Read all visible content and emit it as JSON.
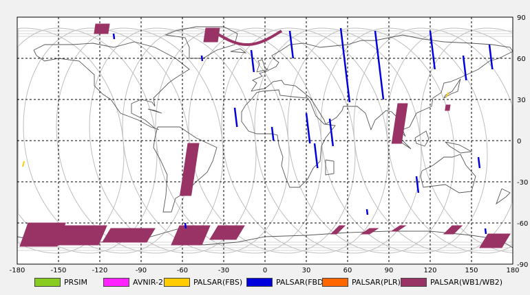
{
  "chart_data": {
    "type": "map",
    "title": "",
    "xlim": [
      -180,
      180
    ],
    "ylim": [
      -90,
      90
    ],
    "xticks": [
      -180,
      -150,
      -120,
      -90,
      -60,
      -30,
      0,
      30,
      60,
      90,
      120,
      150,
      180
    ],
    "yticks": [
      90,
      60,
      30,
      0,
      -30,
      -60,
      -90
    ],
    "xtick_labels": [
      "-180",
      "-150",
      "-120",
      "-90",
      "-60",
      "-30",
      "0",
      "30",
      "60",
      "90",
      "120",
      "150",
      "180"
    ],
    "ytick_labels": [
      "90",
      "60",
      "30",
      "0",
      "-30",
      "-60",
      "-90"
    ],
    "grid": true,
    "legend": [
      {
        "name": "PRSIM",
        "color": "#88cc22"
      },
      {
        "name": "AVNIR-2",
        "color": "#ff22ff"
      },
      {
        "name": "PALSAR(FBS)",
        "color": "#ffcc00"
      },
      {
        "name": "PALSAR(FBD)",
        "color": "#0000dd"
      },
      {
        "name": "PALSAR(PLR)",
        "color": "#ff6600"
      },
      {
        "name": "PALSAR(WB1/WB2)",
        "color": "#993366"
      }
    ],
    "orbit_lon_offsets": [
      -175,
      -151,
      -127,
      -103,
      -79,
      -55,
      -31,
      -7,
      17,
      41,
      65,
      89,
      113,
      137,
      161
    ],
    "fbd_tracks": [
      {
        "lon": -110,
        "lat": [
          78,
          74
        ]
      },
      {
        "lon": -46,
        "lat": [
          62,
          58
        ]
      },
      {
        "lon": -10,
        "lat": [
          66,
          50
        ]
      },
      {
        "lon": 18,
        "lat": [
          80,
          60
        ]
      },
      {
        "lon": 55,
        "lat": [
          82,
          28
        ]
      },
      {
        "lon": 80,
        "lat": [
          80,
          30
        ]
      },
      {
        "lon": 120,
        "lat": [
          80,
          52
        ]
      },
      {
        "lon": 163,
        "lat": [
          70,
          52
        ]
      },
      {
        "lon": 144,
        "lat": [
          62,
          44
        ]
      },
      {
        "lon": -22,
        "lat": [
          24,
          10
        ]
      },
      {
        "lon": 30,
        "lat": [
          20,
          -2
        ]
      },
      {
        "lon": 36,
        "lat": [
          -2,
          -20
        ]
      },
      {
        "lon": 47,
        "lat": [
          16,
          -4
        ]
      },
      {
        "lon": 5,
        "lat": [
          10,
          0
        ]
      },
      {
        "lon": 110,
        "lat": [
          -26,
          -38
        ]
      },
      {
        "lon": 155,
        "lat": [
          -12,
          -20
        ]
      },
      {
        "lon": 74,
        "lat": [
          -50,
          -54
        ]
      },
      {
        "lon": -58,
        "lat": [
          -60,
          -64
        ]
      },
      {
        "lon": 160,
        "lat": [
          -64,
          -68
        ]
      }
    ],
    "wb_strips": [
      {
        "lon": -52,
        "lat": [
          -2,
          -40
        ],
        "w": 8
      },
      {
        "lon": 100,
        "lat": [
          27,
          -2
        ],
        "w": 7
      },
      {
        "lon": -118,
        "lat": [
          85,
          78
        ],
        "w": 10
      },
      {
        "lon": -38,
        "lat": [
          82,
          72
        ],
        "w": 10
      },
      {
        "lon": 133,
        "lat": [
          26,
          22
        ],
        "w": 3
      }
    ],
    "wb_antarctic": [
      {
        "lon": [
          -178,
          -145
        ],
        "lat": [
          -60,
          -77
        ]
      },
      {
        "lon": [
          -152,
          -115
        ],
        "lat": [
          -62,
          -76
        ]
      },
      {
        "lon": [
          -118,
          -80
        ],
        "lat": [
          -64,
          -74
        ]
      },
      {
        "lon": [
          -68,
          -40
        ],
        "lat": [
          -62,
          -76
        ]
      },
      {
        "lon": [
          -40,
          -15
        ],
        "lat": [
          -62,
          -72
        ]
      },
      {
        "lon": [
          48,
          58
        ],
        "lat": [
          -62,
          -68
        ]
      },
      {
        "lon": [
          70,
          82
        ],
        "lat": [
          -64,
          -68
        ]
      },
      {
        "lon": [
          92,
          102
        ],
        "lat": [
          -62,
          -66
        ]
      },
      {
        "lon": [
          130,
          143
        ],
        "lat": [
          -62,
          -68
        ]
      },
      {
        "lon": [
          156,
          178
        ],
        "lat": [
          -68,
          -78
        ]
      }
    ],
    "fbs_marks": [
      {
        "lon": -175,
        "lat": [
          -15,
          -19
        ]
      },
      {
        "lon": 133,
        "lat": [
          35,
          32
        ]
      }
    ]
  }
}
